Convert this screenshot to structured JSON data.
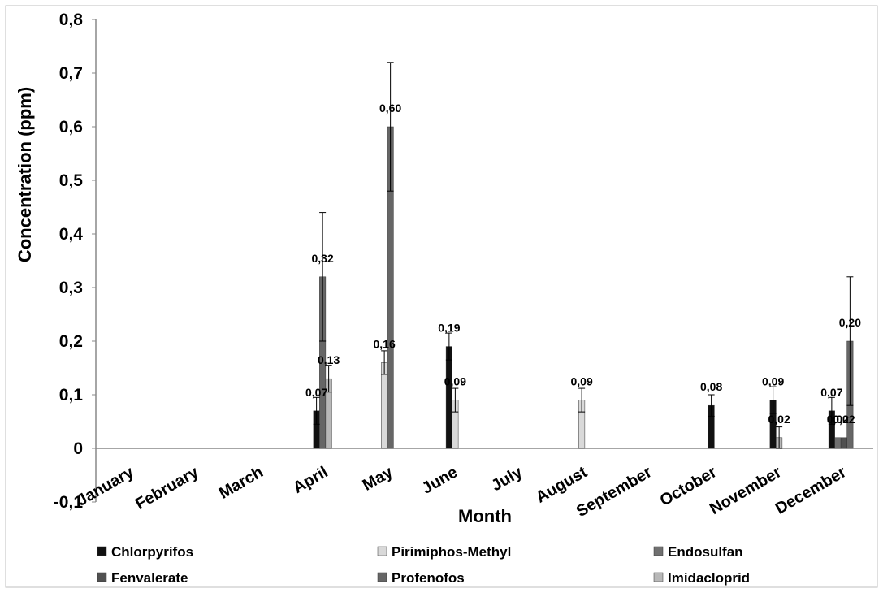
{
  "chart_data": {
    "type": "bar",
    "title": "",
    "xlabel": "Month",
    "ylabel": "Concentration (ppm)",
    "ylim": [
      -0.1,
      0.8
    ],
    "yticks": [
      "0,8",
      "0,7",
      "0,6",
      "0,5",
      "0,4",
      "0,3",
      "0,2",
      "0,1",
      "0",
      "-0,1"
    ],
    "ytick_values": [
      0.8,
      0.7,
      0.6,
      0.5,
      0.4,
      0.3,
      0.2,
      0.1,
      0,
      -0.1
    ],
    "categories": [
      "January",
      "February",
      "March",
      "April",
      "May",
      "June",
      "July",
      "August",
      "September",
      "October",
      "November",
      "December"
    ],
    "legend_position": "bottom",
    "grid": false,
    "series": [
      {
        "name": "Chlorpyrifos",
        "color": "#111111",
        "values": [
          null,
          null,
          null,
          0.07,
          null,
          0.19,
          null,
          null,
          null,
          0.08,
          0.09,
          0.07
        ],
        "errors": [
          null,
          null,
          null,
          0.025,
          null,
          0.025,
          null,
          null,
          null,
          0.02,
          0.025,
          0.025
        ],
        "labels": [
          "",
          "",
          "",
          "0,07",
          "",
          "0,19",
          "",
          "",
          "",
          "0,08",
          "0,09",
          "0,07"
        ]
      },
      {
        "name": "Pirimiphos-Methyl",
        "color": "#d9d9d9",
        "values": [
          null,
          null,
          null,
          null,
          0.16,
          0.09,
          null,
          0.09,
          null,
          null,
          null,
          null
        ],
        "errors": [
          null,
          null,
          null,
          null,
          0.022,
          0.022,
          null,
          0.022,
          null,
          null,
          null,
          null
        ],
        "labels": [
          "",
          "",
          "",
          "",
          "0,16",
          "0,09",
          "",
          "0,09",
          "",
          "",
          "",
          ""
        ]
      },
      {
        "name": "Endosulfan",
        "color": "#707070",
        "values": [
          null,
          null,
          null,
          null,
          null,
          null,
          null,
          null,
          null,
          null,
          null,
          0.02
        ],
        "errors": [
          null,
          null,
          null,
          null,
          null,
          null,
          null,
          null,
          null,
          null,
          null,
          null
        ],
        "labels": [
          "",
          "",
          "",
          "",
          "",
          "",
          "",
          "",
          "",
          "",
          "",
          "0,02"
        ]
      },
      {
        "name": "Fenvalerate",
        "color": "#505050",
        "values": [
          null,
          null,
          null,
          null,
          null,
          null,
          null,
          null,
          null,
          null,
          null,
          0.02
        ],
        "errors": [
          null,
          null,
          null,
          null,
          null,
          null,
          null,
          null,
          null,
          null,
          null,
          null
        ],
        "labels": [
          "",
          "",
          "",
          "",
          "",
          "",
          "",
          "",
          "",
          "",
          "",
          "0,02"
        ]
      },
      {
        "name": "Profenofos",
        "color": "#666666",
        "values": [
          null,
          null,
          null,
          0.32,
          0.6,
          null,
          null,
          null,
          null,
          null,
          null,
          0.2
        ],
        "errors": [
          null,
          null,
          null,
          0.12,
          0.12,
          null,
          null,
          null,
          null,
          null,
          null,
          0.12
        ],
        "labels": [
          "",
          "",
          "",
          "0,32",
          "0,60",
          "",
          "",
          "",
          "",
          "",
          "",
          "0,20"
        ]
      },
      {
        "name": "Imidacloprid",
        "color": "#b8b8b8",
        "values": [
          null,
          null,
          null,
          0.13,
          null,
          null,
          null,
          null,
          null,
          null,
          0.02,
          null
        ],
        "errors": [
          null,
          null,
          null,
          0.025,
          null,
          null,
          null,
          null,
          null,
          null,
          0.02,
          null
        ],
        "labels": [
          "",
          "",
          "",
          "0,13",
          "",
          "",
          "",
          "",
          "",
          "",
          "0,02",
          ""
        ]
      }
    ]
  }
}
